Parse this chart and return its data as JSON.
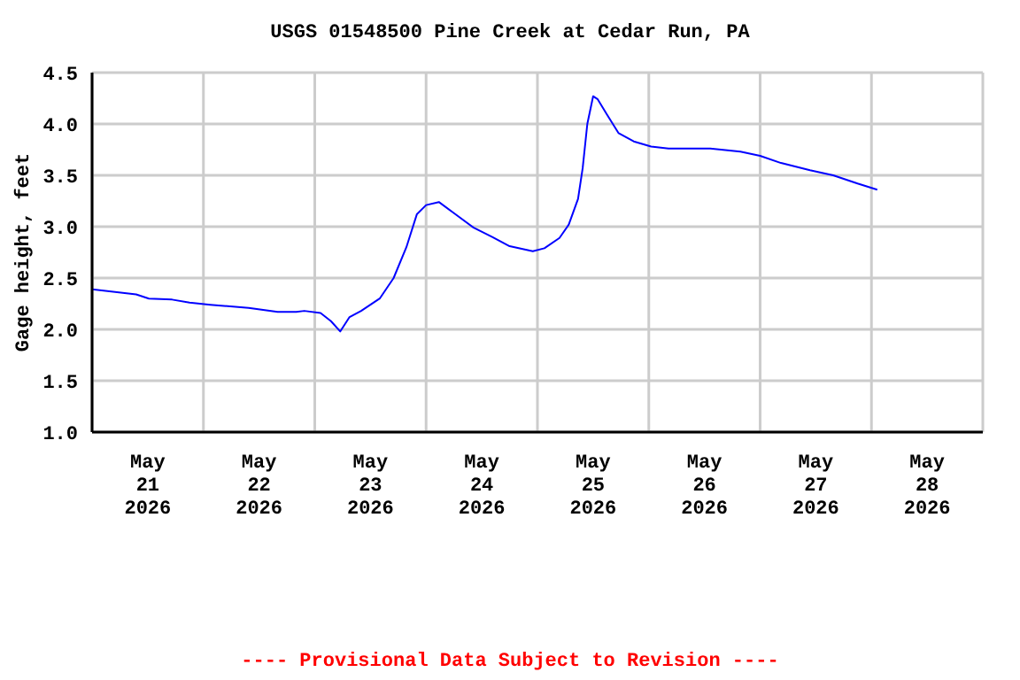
{
  "chart_data": {
    "type": "line",
    "title": "USGS 01548500 Pine Creek at Cedar Run, PA",
    "ylabel": "Gage height, feet",
    "annotations": [
      "---- Provisional Data Subject to Revision ----"
    ],
    "x": [
      "2026-05-21T00:00",
      "2026-05-21T09:30",
      "2026-05-21T12:15",
      "2026-05-21T17:15",
      "2026-05-21T21:00",
      "2026-05-22T01:30",
      "2026-05-22T09:45",
      "2026-05-22T16:00",
      "2026-05-22T20:00",
      "2026-05-22T21:45",
      "2026-05-23T01:15",
      "2026-05-23T03:30",
      "2026-05-23T05:30",
      "2026-05-23T07:30",
      "2026-05-23T10:00",
      "2026-05-23T14:00",
      "2026-05-23T17:00",
      "2026-05-23T19:45",
      "2026-05-23T22:00",
      "2026-05-24T00:00",
      "2026-05-24T02:45",
      "2026-05-24T05:45",
      "2026-05-24T10:15",
      "2026-05-24T14:15",
      "2026-05-24T18:00",
      "2026-05-24T23:00",
      "2026-05-25T01:30",
      "2026-05-25T04:45",
      "2026-05-25T06:45",
      "2026-05-25T08:45",
      "2026-05-25T09:45",
      "2026-05-25T10:45",
      "2026-05-25T12:00",
      "2026-05-25T13:00",
      "2026-05-25T15:00",
      "2026-05-25T17:30",
      "2026-05-25T20:45",
      "2026-05-26T00:30",
      "2026-05-26T04:15",
      "2026-05-26T13:15",
      "2026-05-26T19:45",
      "2026-05-27T00:00",
      "2026-05-27T04:30",
      "2026-05-27T10:45",
      "2026-05-27T15:45",
      "2026-05-27T21:00",
      "2026-05-28T01:15"
    ],
    "series": [
      {
        "color": "#0000ff",
        "values": [
          2.39,
          2.34,
          2.3,
          2.29,
          2.26,
          2.24,
          2.21,
          2.17,
          2.17,
          2.18,
          2.16,
          2.08,
          1.98,
          2.12,
          2.18,
          2.3,
          2.5,
          2.8,
          3.12,
          3.21,
          3.24,
          3.14,
          2.99,
          2.9,
          2.81,
          2.76,
          2.79,
          2.89,
          3.02,
          3.27,
          3.57,
          4.0,
          4.27,
          4.24,
          4.09,
          3.91,
          3.83,
          3.78,
          3.76,
          3.76,
          3.73,
          3.69,
          3.62,
          3.55,
          3.5,
          3.42,
          3.36
        ]
      }
    ],
    "xlim": [
      "2026-05-21T00:00",
      "2026-05-29T00:00"
    ],
    "xticks": [
      {
        "value": "2026-05-21T00:00",
        "label": null
      },
      {
        "value": "2026-05-21T12:00",
        "label": "May 21 2026"
      },
      {
        "value": "2026-05-22T00:00",
        "label": null
      },
      {
        "value": "2026-05-22T12:00",
        "label": "May 22 2026"
      },
      {
        "value": "2026-05-23T00:00",
        "label": null
      },
      {
        "value": "2026-05-23T12:00",
        "label": "May 23 2026"
      },
      {
        "value": "2026-05-24T00:00",
        "label": null
      },
      {
        "value": "2026-05-24T12:00",
        "label": "May 24 2026"
      },
      {
        "value": "2026-05-25T00:00",
        "label": null
      },
      {
        "value": "2026-05-25T12:00",
        "label": "May 25 2026"
      },
      {
        "value": "2026-05-26T00:00",
        "label": null
      },
      {
        "value": "2026-05-26T12:00",
        "label": "May 26 2026"
      },
      {
        "value": "2026-05-27T00:00",
        "label": null
      },
      {
        "value": "2026-05-27T12:00",
        "label": "May 27 2026"
      },
      {
        "value": "2026-05-28T00:00",
        "label": null
      },
      {
        "value": "2026-05-28T12:00",
        "label": "May 28 2026"
      },
      {
        "value": "2026-05-29T00:00",
        "label": null
      }
    ],
    "ylim": [
      1.0,
      4.5
    ],
    "yticks": [
      {
        "value": 1.0,
        "label": "1.0"
      },
      {
        "value": 1.5,
        "label": "1.5"
      },
      {
        "value": 2.0,
        "label": "2.0"
      },
      {
        "value": 2.5,
        "label": "2.5"
      },
      {
        "value": 3.0,
        "label": "3.0"
      },
      {
        "value": 3.5,
        "label": "3.5"
      },
      {
        "value": 4.0,
        "label": "4.0"
      },
      {
        "value": 4.5,
        "label": "4.5"
      }
    ],
    "grid": true,
    "marker": "none",
    "line_style": "solid"
  }
}
